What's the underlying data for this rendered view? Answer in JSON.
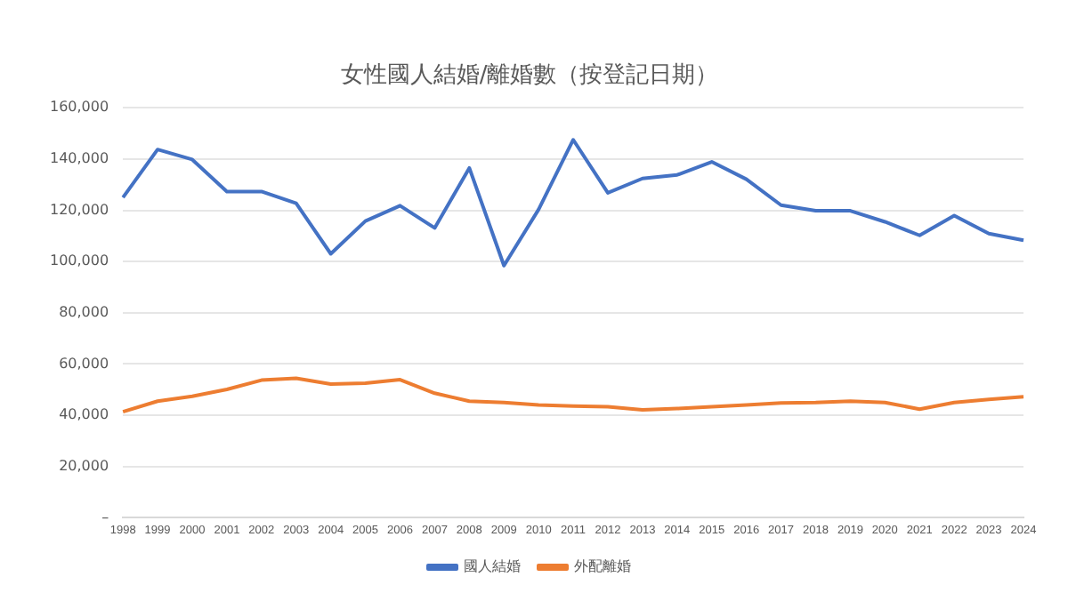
{
  "chart_data": {
    "type": "line",
    "title": "女性國人結婚/離婚數（按登記日期）",
    "categories": [
      "1998",
      "1999",
      "2000",
      "2001",
      "2002",
      "2003",
      "2004",
      "2005",
      "2006",
      "2007",
      "2008",
      "2009",
      "2010",
      "2011",
      "2012",
      "2013",
      "2014",
      "2015",
      "2016",
      "2017",
      "2018",
      "2019",
      "2020",
      "2021",
      "2022",
      "2023",
      "2024"
    ],
    "series": [
      {
        "name": "國人結婚",
        "color": "#4472c4",
        "values": [
          125000,
          143700,
          139800,
          127300,
          127300,
          122700,
          103000,
          115800,
          121800,
          113100,
          136500,
          98400,
          120300,
          147500,
          126800,
          132400,
          133800,
          138900,
          132100,
          122000,
          119800,
          119800,
          115500,
          110200,
          117900,
          110900,
          108300
        ]
      },
      {
        "name": "外配離婚",
        "color": "#ed7d31",
        "values": [
          41400,
          45500,
          47400,
          50100,
          53700,
          54400,
          52200,
          52500,
          53900,
          48600,
          45500,
          45000,
          44000,
          43600,
          43300,
          42100,
          42600,
          43300,
          44000,
          44800,
          45000,
          45500,
          45000,
          42400,
          45000,
          46200,
          47200
        ]
      }
    ],
    "ylim": [
      0,
      160000
    ],
    "yticks": [
      {
        "value": 0,
        "label": "–"
      },
      {
        "value": 20000,
        "label": "20,000"
      },
      {
        "value": 40000,
        "label": "40,000"
      },
      {
        "value": 60000,
        "label": "60,000"
      },
      {
        "value": 80000,
        "label": "80,000"
      },
      {
        "value": 100000,
        "label": "100,000"
      },
      {
        "value": 120000,
        "label": "120,000"
      },
      {
        "value": 140000,
        "label": "140,000"
      },
      {
        "value": 160000,
        "label": "160,000"
      }
    ],
    "grid": "y",
    "legend": "bottom",
    "marker": "none",
    "line_style": "solid"
  }
}
